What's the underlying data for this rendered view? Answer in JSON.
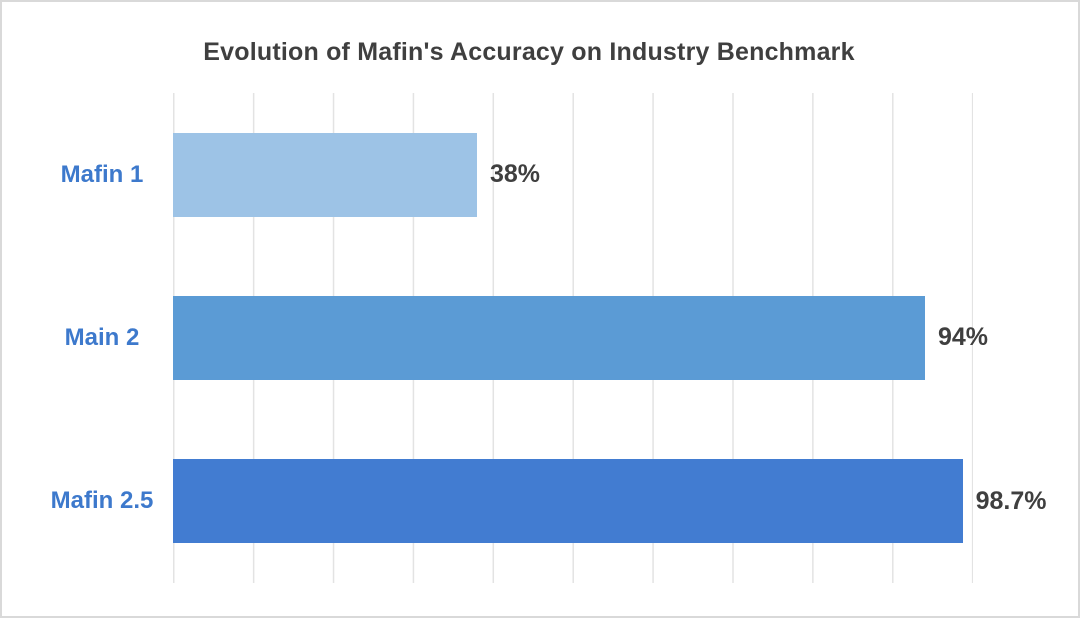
{
  "chart_data": {
    "type": "bar",
    "orientation": "horizontal",
    "title": "Evolution of Mafin's Accuracy on Industry Benchmark",
    "categories": [
      "Mafin 1",
      "Main 2",
      "Mafin 2.5"
    ],
    "values": [
      38,
      94,
      98.7
    ],
    "value_labels": [
      "38%",
      "94%",
      "98.7%"
    ],
    "xlabel": "",
    "ylabel": "",
    "xlim": [
      0,
      100
    ],
    "gridline_interval": 10,
    "grid": true,
    "legend": false,
    "bar_colors": [
      "#9DC3E6",
      "#5B9BD5",
      "#427CD1"
    ],
    "title_color": "#3F3F3F",
    "category_label_color": "#3D79CC",
    "value_label_color": "#3F3F3F",
    "gridline_color": "#E3E3E3",
    "background_color": "#FFFFFF"
  }
}
